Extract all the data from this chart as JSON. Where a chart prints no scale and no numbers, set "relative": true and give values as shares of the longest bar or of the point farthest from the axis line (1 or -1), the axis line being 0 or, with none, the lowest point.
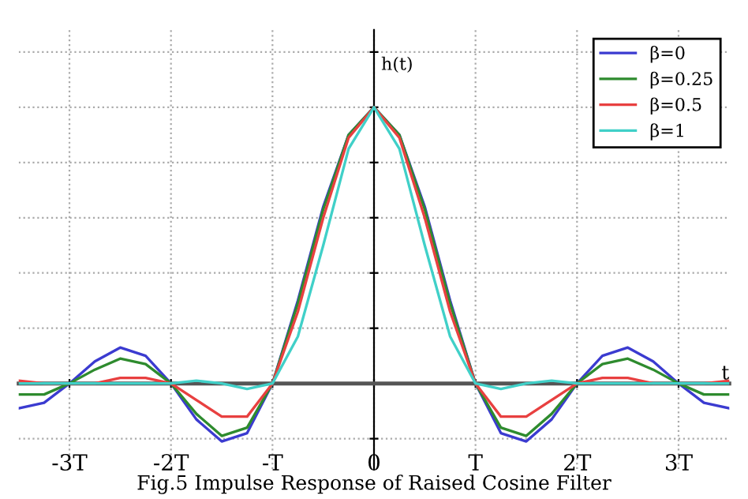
{
  "chart_data": {
    "type": "line",
    "relative": true,
    "xlabel": "t",
    "ylabel": "h(t)",
    "x": [
      -3.5,
      -3.25,
      -3,
      -2.75,
      -2.5,
      -2.25,
      -2,
      -1.75,
      -1.5,
      -1.25,
      -1,
      -0.75,
      -0.5,
      -0.25,
      0,
      0.25,
      0.5,
      0.75,
      1,
      1.25,
      1.5,
      1.75,
      2,
      2.25,
      2.5,
      2.75,
      3,
      3.25,
      3.5
    ],
    "series": [
      {
        "name": "β=0",
        "color": "#3b3bd0",
        "values": [
          -0.09,
          -0.07,
          0,
          0.08,
          0.13,
          0.1,
          0,
          -0.13,
          -0.21,
          -0.18,
          0,
          0.3,
          0.64,
          0.9,
          1,
          0.9,
          0.64,
          0.3,
          0,
          -0.18,
          -0.21,
          -0.13,
          0,
          0.1,
          0.13,
          0.08,
          0,
          -0.07,
          -0.09
        ]
      },
      {
        "name": "β=0.25",
        "color": "#2e8b2e",
        "values": [
          -0.04,
          -0.04,
          0,
          0.05,
          0.09,
          0.07,
          0,
          -0.11,
          -0.19,
          -0.16,
          0,
          0.29,
          0.63,
          0.9,
          1,
          0.9,
          0.63,
          0.29,
          0,
          -0.16,
          -0.19,
          -0.11,
          0,
          0.07,
          0.09,
          0.05,
          0,
          -0.04,
          -0.04
        ]
      },
      {
        "name": "β=0.5",
        "color": "#e84040",
        "values": [
          0.01,
          0,
          0,
          0,
          0.02,
          0.02,
          0,
          -0.06,
          -0.12,
          -0.12,
          0,
          0.26,
          0.6,
          0.89,
          1,
          0.89,
          0.6,
          0.26,
          0,
          -0.12,
          -0.12,
          -0.06,
          0,
          0.02,
          0.02,
          0,
          0,
          0,
          0.01
        ]
      },
      {
        "name": "β=1",
        "color": "#40d0c8",
        "values": [
          0,
          0,
          0,
          0,
          0,
          0,
          0,
          0.01,
          0,
          -0.02,
          0,
          0.17,
          0.5,
          0.85,
          1,
          0.85,
          0.5,
          0.17,
          0,
          -0.02,
          0,
          0.01,
          0,
          0,
          0,
          0,
          0,
          0,
          0
        ]
      }
    ],
    "xlim": [
      -3.5,
      3.5
    ],
    "xticks": [
      {
        "value": -3,
        "label": "-3T"
      },
      {
        "value": -2,
        "label": "-2T"
      },
      {
        "value": -1,
        "label": "-T"
      },
      0,
      {
        "value": 1,
        "label": "T"
      },
      {
        "value": 2,
        "label": "2T"
      },
      {
        "value": 3,
        "label": "3T"
      }
    ],
    "grid": true,
    "legend": "top right",
    "marker": "none",
    "line_style": "solid",
    "annotations": [
      "Fig.5 Impulse Response of Raised Cosine Filter"
    ]
  }
}
